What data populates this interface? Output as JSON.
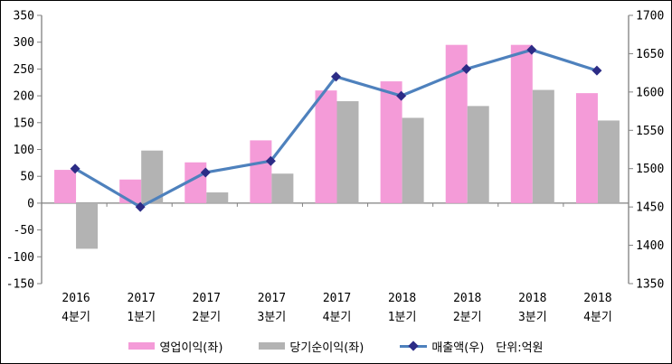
{
  "chart_data": {
    "type": "combo-bar-line",
    "title": "",
    "categories": [
      {
        "top": "2016",
        "bottom": "4분기"
      },
      {
        "top": "2017",
        "bottom": "1분기"
      },
      {
        "top": "2017",
        "bottom": "2분기"
      },
      {
        "top": "2017",
        "bottom": "3분기"
      },
      {
        "top": "2017",
        "bottom": "4분기"
      },
      {
        "top": "2018",
        "bottom": "1분기"
      },
      {
        "top": "2018",
        "bottom": "2분기"
      },
      {
        "top": "2018",
        "bottom": "3분기"
      },
      {
        "top": "2018",
        "bottom": "4분기"
      }
    ],
    "series": [
      {
        "name": "영업이익(좌)",
        "type": "bar",
        "axis": "left",
        "color": "#F49BD8",
        "values": [
          62,
          44,
          76,
          117,
          210,
          227,
          295,
          295,
          205
        ]
      },
      {
        "name": "당기순이익(좌)",
        "type": "bar",
        "axis": "left",
        "color": "#B3B3B3",
        "values": [
          -85,
          98,
          20,
          55,
          190,
          159,
          181,
          211,
          154
        ]
      },
      {
        "name": "매출액(우)",
        "type": "line",
        "axis": "right",
        "color": "#4E81BD",
        "marker": "diamond",
        "marker_color": "#2C2C86",
        "values": [
          1500,
          1450,
          1495,
          1510,
          1620,
          1595,
          1630,
          1655,
          1628
        ]
      }
    ],
    "left_axis": {
      "min": -150,
      "max": 350,
      "step": 50,
      "ticks": [
        350,
        300,
        250,
        200,
        150,
        100,
        50,
        0,
        -50,
        -100,
        -150
      ]
    },
    "right_axis": {
      "min": 1350,
      "max": 1700,
      "step": 50,
      "ticks": [
        1700,
        1650,
        1600,
        1550,
        1500,
        1450,
        1400,
        1350
      ]
    },
    "unit_note": "단위:억원",
    "legend_position": "bottom",
    "grid": false,
    "axis_color": "#808080",
    "text_color": "#000000"
  }
}
